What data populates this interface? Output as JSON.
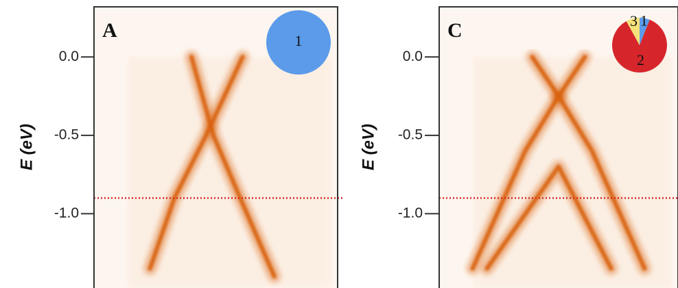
{
  "chart_data": [
    {
      "type": "arpes",
      "panel_label": "A",
      "ylabel": "E (eV)",
      "ylim": [
        -1.47,
        0.32
      ],
      "yticks": [
        {
          "value": 0,
          "label": "0.0"
        },
        -0.5,
        {
          "value": -1,
          "label": "-1.0"
        }
      ],
      "xlim": [
        0,
        1
      ],
      "color": "#d9620f",
      "bands": [
        {
          "x": [
            0.4,
            0.49,
            0.6,
            0.74
          ],
          "values": [
            0,
            -0.5,
            -0.9,
            -1.4
          ]
        },
        {
          "x": [
            0.61,
            0.46,
            0.33,
            0.23
          ],
          "values": [
            0,
            -0.5,
            -0.9,
            -1.35
          ]
        }
      ],
      "hline": -0.9,
      "hline_color": "#d42a2a",
      "pie": {
        "labels": [
          "1"
        ],
        "values": [
          100
        ],
        "colors": [
          "#5b9bea"
        ]
      }
    },
    {
      "type": "arpes",
      "panel_label": "C",
      "ylabel": "E (eV)",
      "ylim": [
        -1.47,
        0.32
      ],
      "yticks": [
        {
          "value": 0,
          "label": "0.0"
        },
        -0.5,
        {
          "value": -1,
          "label": "-1.0"
        }
      ],
      "xlim": [
        0,
        1
      ],
      "color": "#d9620f",
      "bands": [
        {
          "x": [
            0.39,
            0.5,
            0.61
          ],
          "values": [
            0,
            -0.25,
            0
          ]
        },
        {
          "x": [
            0.5,
            0.36,
            0.14
          ],
          "values": [
            -0.25,
            -0.6,
            -1.35
          ]
        },
        {
          "x": [
            0.5,
            0.64,
            0.86
          ],
          "values": [
            -0.25,
            -0.6,
            -1.35
          ]
        },
        {
          "x": [
            0.2,
            0.5,
            0.72
          ],
          "values": [
            -1.35,
            -0.7,
            -1.35
          ]
        }
      ],
      "hline": -0.9,
      "hline_color": "#d42a2a",
      "pie": {
        "labels": [
          "1",
          "2",
          "3"
        ],
        "values": [
          6,
          86,
          8
        ],
        "colors": [
          "#5b9bea",
          "#d6262b",
          "#f5e27a"
        ]
      }
    }
  ]
}
